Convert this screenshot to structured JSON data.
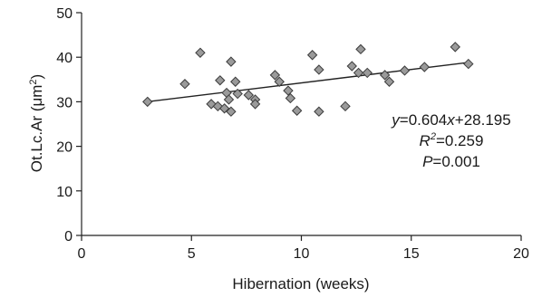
{
  "chart_data": {
    "type": "scatter",
    "xlabel": "Hibernation (weeks)",
    "ylabel_base": "Ot.Lc.Ar (μm",
    "ylabel_sup": "2",
    "ylabel_close": ")",
    "xlim": [
      0,
      20
    ],
    "ylim": [
      0,
      50
    ],
    "xticks": [
      0,
      5,
      10,
      15,
      20
    ],
    "yticks": [
      0,
      10,
      20,
      30,
      40,
      50
    ],
    "grid": false,
    "marker": "diamond",
    "colors": {
      "marker_fill": "#9a9a9a",
      "marker_edge": "#3c3c3c",
      "line": "#222222"
    },
    "points": [
      {
        "x": 3.0,
        "y": 30.0
      },
      {
        "x": 4.7,
        "y": 34.0
      },
      {
        "x": 5.4,
        "y": 41.0
      },
      {
        "x": 5.9,
        "y": 29.5
      },
      {
        "x": 6.2,
        "y": 29.0
      },
      {
        "x": 6.3,
        "y": 34.8
      },
      {
        "x": 6.5,
        "y": 28.5
      },
      {
        "x": 6.6,
        "y": 32.0
      },
      {
        "x": 6.7,
        "y": 30.5
      },
      {
        "x": 6.8,
        "y": 39.0
      },
      {
        "x": 6.8,
        "y": 27.8
      },
      {
        "x": 7.0,
        "y": 34.5
      },
      {
        "x": 7.1,
        "y": 31.8
      },
      {
        "x": 7.6,
        "y": 31.5
      },
      {
        "x": 7.9,
        "y": 30.5
      },
      {
        "x": 7.9,
        "y": 29.5
      },
      {
        "x": 8.8,
        "y": 36.0
      },
      {
        "x": 9.0,
        "y": 34.5
      },
      {
        "x": 9.4,
        "y": 32.5
      },
      {
        "x": 9.5,
        "y": 30.8
      },
      {
        "x": 9.8,
        "y": 28.0
      },
      {
        "x": 10.5,
        "y": 40.5
      },
      {
        "x": 10.8,
        "y": 37.2
      },
      {
        "x": 10.8,
        "y": 27.8
      },
      {
        "x": 12.0,
        "y": 29.0
      },
      {
        "x": 12.3,
        "y": 38.0
      },
      {
        "x": 12.6,
        "y": 36.5
      },
      {
        "x": 12.7,
        "y": 41.8
      },
      {
        "x": 13.0,
        "y": 36.5
      },
      {
        "x": 13.8,
        "y": 36.0
      },
      {
        "x": 14.0,
        "y": 34.5
      },
      {
        "x": 14.7,
        "y": 37.0
      },
      {
        "x": 15.6,
        "y": 37.8
      },
      {
        "x": 17.0,
        "y": 42.3
      },
      {
        "x": 17.6,
        "y": 38.5
      }
    ],
    "trendline": {
      "slope": 0.604,
      "intercept": 28.195,
      "x_range": [
        3.0,
        17.6
      ]
    },
    "annotations": {
      "equation": {
        "y": "y",
        "eq": "=0.604",
        "x": "x",
        "rest": "+28.195"
      },
      "r2": {
        "r": "R",
        "sup": "2",
        "rest": "=0.259"
      },
      "p": {
        "p": "P",
        "rest": "=0.001"
      }
    }
  }
}
